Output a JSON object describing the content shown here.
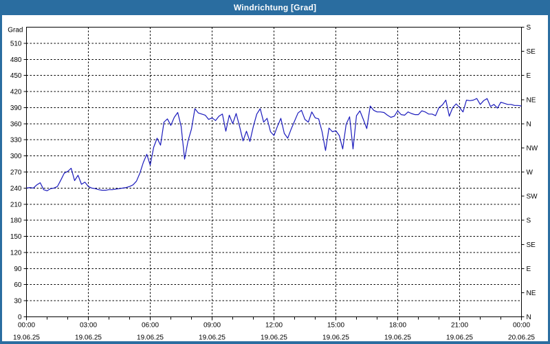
{
  "window": {
    "title": "Windrichtung [Grad]"
  },
  "colors": {
    "frame_blue": "#2a6da0",
    "plot_background": "#ffffff",
    "grid_black": "#000000",
    "series_blue": "#1a1abc",
    "title_text": "#ffffff"
  },
  "chart_data": {
    "type": "line",
    "title": "Windrichtung [Grad]",
    "grid": {
      "style": "dashed",
      "horizontal_step_grad": 30,
      "vertical_step_hours": 3
    },
    "y_left": {
      "unit_label": "Grad",
      "min": 0,
      "max": 540,
      "tick_step": 30,
      "tick_labels_top_to_bottom": [
        "510",
        "480",
        "450",
        "420",
        "390",
        "360",
        "330",
        "300",
        "270",
        "240",
        "210",
        "180",
        "150",
        "120",
        "90",
        "60",
        "30",
        "0"
      ]
    },
    "y_right": {
      "tick_step": 45,
      "labels_top_to_bottom": [
        "S",
        "SE",
        "E",
        "NE",
        "N",
        "NW",
        "W",
        "SW",
        "S",
        "SE",
        "E",
        "NE",
        "N"
      ]
    },
    "x_axis": {
      "hours_total": 24,
      "minor_tick_hours": 1,
      "major_tick_hours": 3,
      "major_labels": [
        {
          "time": "00:00",
          "date": "19.06.25"
        },
        {
          "time": "03:00",
          "date": "19.06.25"
        },
        {
          "time": "06:00",
          "date": "19.06.25"
        },
        {
          "time": "09:00",
          "date": "19.06.25"
        },
        {
          "time": "12:00",
          "date": "19.06.25"
        },
        {
          "time": "15:00",
          "date": "19.06.25"
        },
        {
          "time": "18:00",
          "date": "19.06.25"
        },
        {
          "time": "21:00",
          "date": "19.06.25"
        },
        {
          "time": "00:00",
          "date": "20.06.25"
        }
      ]
    },
    "series": [
      {
        "name": "Windrichtung",
        "color": "#1a1abc",
        "interval_minutes": 10,
        "start_time": "00:00",
        "values": [
          240,
          241,
          240,
          246,
          250,
          237,
          235,
          239,
          240,
          243,
          255,
          268,
          271,
          277,
          254,
          264,
          247,
          251,
          243,
          240,
          239,
          237,
          236,
          236,
          237,
          237,
          238,
          239,
          240,
          241,
          243,
          246,
          253,
          268,
          288,
          303,
          283,
          316,
          333,
          320,
          363,
          369,
          357,
          372,
          381,
          355,
          294,
          328,
          350,
          388,
          380,
          378,
          376,
          368,
          371,
          366,
          374,
          378,
          346,
          376,
          360,
          379,
          355,
          328,
          346,
          327,
          355,
          378,
          388,
          363,
          370,
          345,
          338,
          355,
          370,
          342,
          333,
          350,
          365,
          380,
          385,
          368,
          363,
          382,
          371,
          369,
          345,
          310,
          352,
          345,
          347,
          338,
          313,
          359,
          373,
          313,
          375,
          384,
          368,
          351,
          393,
          385,
          382,
          382,
          381,
          376,
          372,
          374,
          384,
          377,
          376,
          382,
          379,
          377,
          377,
          384,
          382,
          378,
          378,
          375,
          390,
          395,
          404,
          374,
          390,
          397,
          390,
          382,
          404,
          403,
          404,
          407,
          396,
          403,
          407,
          392,
          396,
          389,
          400,
          398,
          396,
          396,
          394,
          394,
          393
        ]
      }
    ],
    "ylim": [
      0,
      540
    ],
    "legend": "none"
  }
}
